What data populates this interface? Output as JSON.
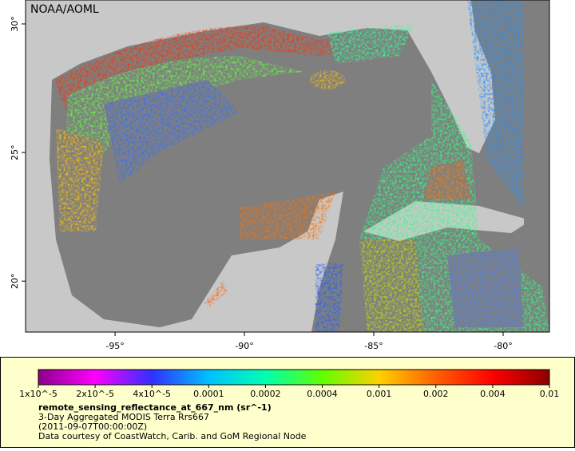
{
  "map": {
    "watermark": "NOAA/AOML",
    "lon_range": [
      -98.46,
      -78.21
    ],
    "lat_range": [
      18.02,
      30.93
    ],
    "lon_ticks": [
      {
        "value": -95,
        "label": "-95°"
      },
      {
        "value": -90,
        "label": "-90°"
      },
      {
        "value": -85,
        "label": "-85°"
      },
      {
        "value": -80,
        "label": "-80°"
      }
    ],
    "lat_ticks": [
      {
        "value": 20,
        "label": "20°"
      },
      {
        "value": 25,
        "label": "25°"
      },
      {
        "value": 30,
        "label": "30°"
      }
    ]
  },
  "legend": {
    "colorbar": {
      "scale": "log",
      "colors": [
        "#8b008b",
        "#ff00ff",
        "#3030ff",
        "#00c0ff",
        "#00ffb0",
        "#60ff00",
        "#ffd000",
        "#ff6000",
        "#ff0000",
        "#8b0000"
      ],
      "ticks": [
        {
          "value": 1e-05,
          "label": "1x10^-5"
        },
        {
          "value": 2e-05,
          "label": "2x10^-5"
        },
        {
          "value": 4e-05,
          "label": "4x10^-5"
        },
        0.0001,
        0.0002,
        0.0004,
        0.001,
        0.002,
        0.004,
        0.01
      ]
    },
    "variable": "remote_sensing_reflectance_at_667_nm (sr^-1)",
    "description": "3-Day Aggregated MODIS Terra Rrs667",
    "time": "(2011-09-07T00:00:00Z)",
    "credit": "Data courtesy of CoastWatch, Carib. and GoM Regional Node"
  }
}
